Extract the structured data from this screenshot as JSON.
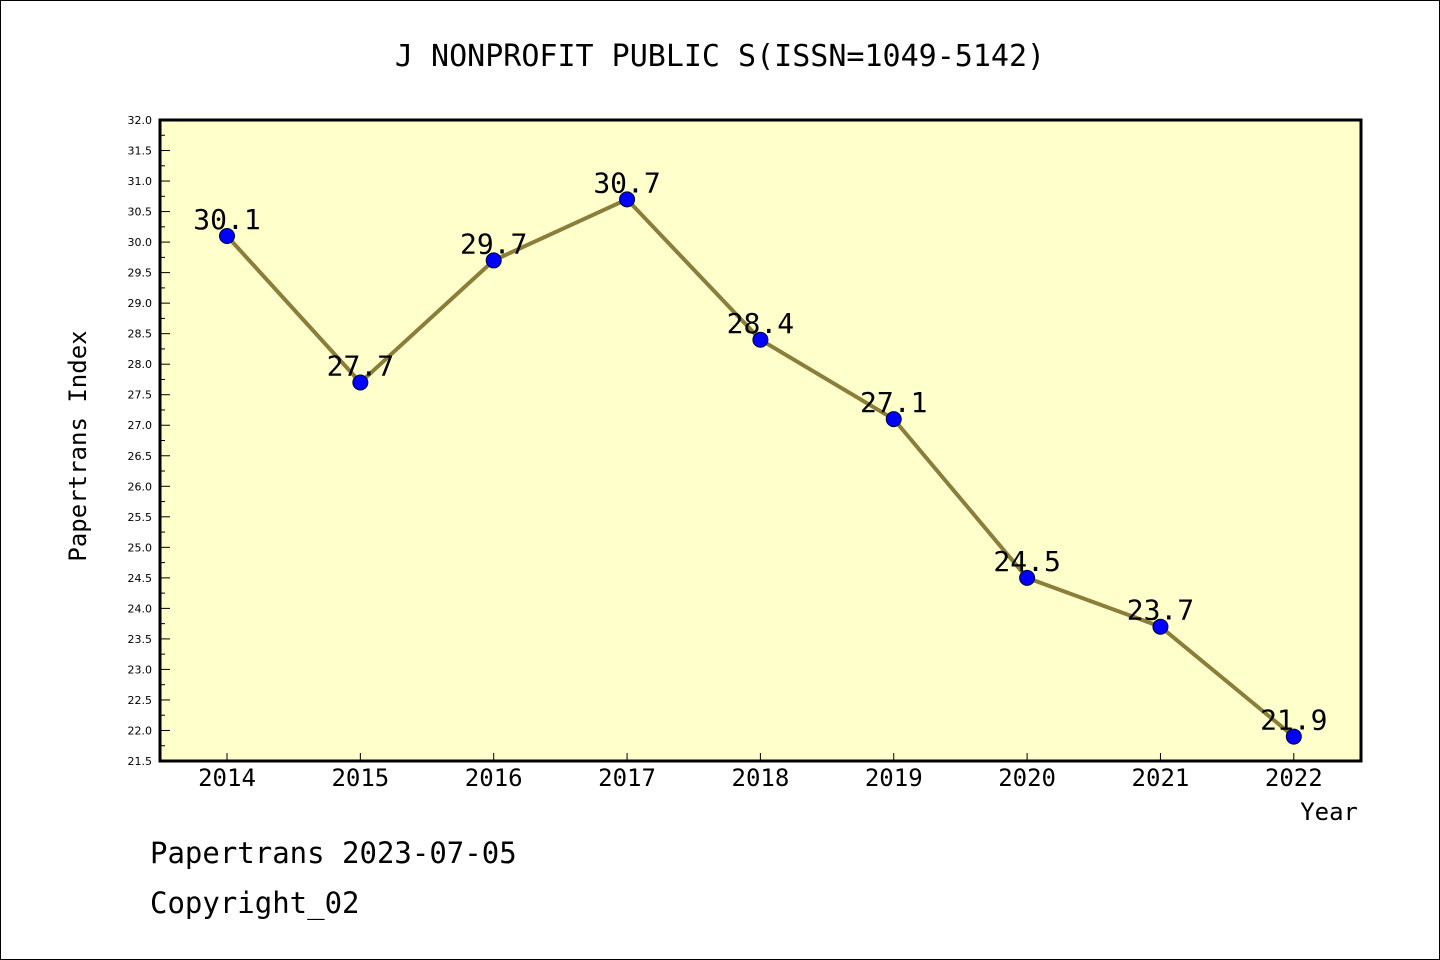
{
  "chart_data": {
    "type": "line",
    "title": "J NONPROFIT PUBLIC S(ISSN=1049-5142)",
    "xlabel": "Year",
    "ylabel": "Papertrans Index",
    "x": [
      "2014",
      "2015",
      "2016",
      "2017",
      "2018",
      "2019",
      "2020",
      "2021",
      "2022"
    ],
    "series": [
      {
        "values": [
          30.1,
          27.7,
          29.7,
          30.7,
          28.4,
          27.1,
          24.5,
          23.7,
          21.9
        ],
        "data_labels": [
          "30.1",
          "27.7",
          "29.7",
          "30.7",
          "28.4",
          "27.1",
          "24.5",
          "23.7",
          "21.9"
        ]
      }
    ],
    "ylim": [
      21.5,
      32.0
    ],
    "yticks": [
      "21.5",
      "22.0",
      "22.5",
      "23.0",
      "23.5",
      "24.0",
      "24.5",
      "25.0",
      "25.5",
      "26.0",
      "26.5",
      "27.0",
      "27.5",
      "28.0",
      "28.5",
      "29.0",
      "29.5",
      "30.0",
      "30.5",
      "31.0",
      "31.5",
      "32.0"
    ],
    "grid": false,
    "colors": {
      "plot_bg": "#ffffcc",
      "line": "#8b7d3a",
      "marker": "#0000ff"
    }
  },
  "footer": {
    "line1": "Papertrans 2023-07-05",
    "line2": "Copyright_02"
  }
}
